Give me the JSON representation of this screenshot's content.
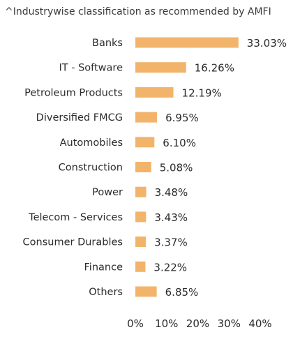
{
  "chart_data": {
    "type": "bar",
    "orientation": "horizontal",
    "title": "^Industrywise classification as recommended by AMFI",
    "categories": [
      "Banks",
      "IT - Software",
      "Petroleum Products",
      "Diversified FMCG",
      "Automobiles",
      "Construction",
      "Power",
      "Telecom - Services",
      "Consumer Durables",
      "Finance",
      "Others"
    ],
    "values": [
      33.03,
      16.26,
      12.19,
      6.95,
      6.1,
      5.08,
      3.48,
      3.43,
      3.37,
      3.22,
      6.85
    ],
    "value_labels": [
      "33.03%",
      "16.26%",
      "12.19%",
      "6.95%",
      "6.10%",
      "5.08%",
      "3.48%",
      "3.43%",
      "3.37%",
      "3.22%",
      "6.85%"
    ],
    "xlim": [
      0,
      40
    ],
    "xticks": [
      "0%",
      "10%",
      "20%",
      "30%",
      "40%"
    ],
    "xtick_values": [
      0,
      10,
      20,
      30,
      40
    ],
    "bar_color": "#f2b46b",
    "grid": false,
    "legend": "none"
  }
}
